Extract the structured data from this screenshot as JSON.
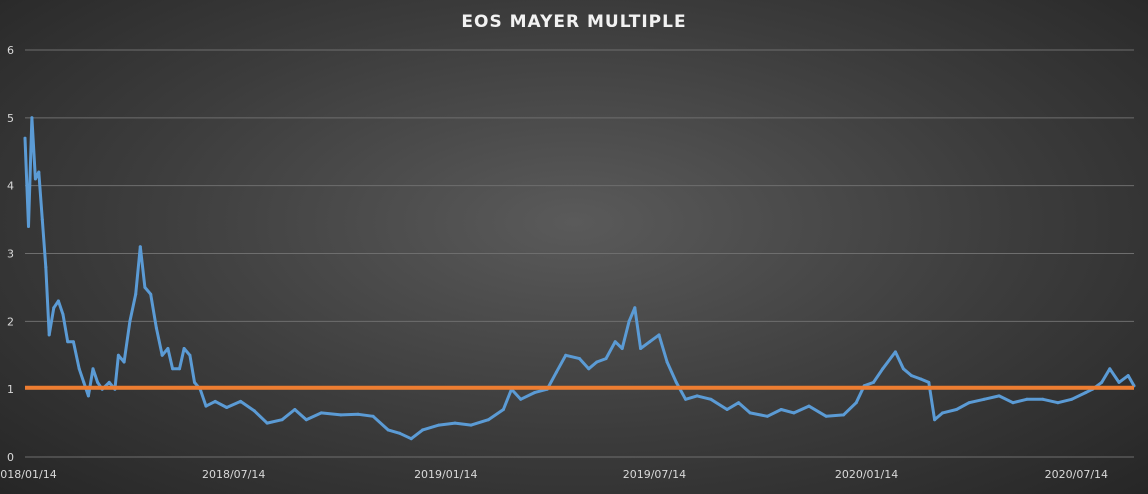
{
  "chart_data": {
    "type": "line",
    "title": "EOS MAYER MULTIPLE",
    "xlabel": "",
    "ylabel": "",
    "ylim": [
      0,
      6
    ],
    "yticks": [
      "0",
      "1",
      "2",
      "3",
      "4",
      "5",
      "6"
    ],
    "xticks": [
      "2018/01/14",
      "2018/07/14",
      "2019/01/14",
      "2019/07/14",
      "2020/01/14",
      "2020/07/14"
    ],
    "xlim": [
      "2018/01/14",
      "2020/09/02"
    ],
    "grid": true,
    "legend": "none",
    "colors": {
      "series": "#5b9bd5",
      "reference": "#ed7d31",
      "grid": "#6e6e6e",
      "text": "#d9d9d9"
    },
    "reference_line": {
      "y": 1.02
    },
    "series": [
      {
        "points": [
          [
            "2018/01/14",
            4.7
          ],
          [
            "2018/01/17",
            3.4
          ],
          [
            "2018/01/20",
            5.0
          ],
          [
            "2018/01/23",
            4.1
          ],
          [
            "2018/01/26",
            4.2
          ],
          [
            "2018/01/29",
            3.5
          ],
          [
            "2018/02/01",
            2.8
          ],
          [
            "2018/02/04",
            1.8
          ],
          [
            "2018/02/08",
            2.2
          ],
          [
            "2018/02/12",
            2.3
          ],
          [
            "2018/02/16",
            2.1
          ],
          [
            "2018/02/20",
            1.7
          ],
          [
            "2018/02/25",
            1.7
          ],
          [
            "2018/03/02",
            1.3
          ],
          [
            "2018/03/06",
            1.1
          ],
          [
            "2018/03/10",
            0.9
          ],
          [
            "2018/03/14",
            1.3
          ],
          [
            "2018/03/18",
            1.1
          ],
          [
            "2018/03/22",
            1.0
          ],
          [
            "2018/03/28",
            1.1
          ],
          [
            "2018/04/02",
            1.0
          ],
          [
            "2018/04/05",
            1.5
          ],
          [
            "2018/04/10",
            1.4
          ],
          [
            "2018/04/15",
            2.0
          ],
          [
            "2018/04/20",
            2.4
          ],
          [
            "2018/04/24",
            3.1
          ],
          [
            "2018/04/28",
            2.5
          ],
          [
            "2018/05/03",
            2.4
          ],
          [
            "2018/05/08",
            1.9
          ],
          [
            "2018/05/13",
            1.5
          ],
          [
            "2018/05/18",
            1.6
          ],
          [
            "2018/05/22",
            1.3
          ],
          [
            "2018/05/28",
            1.3
          ],
          [
            "2018/06/01",
            1.6
          ],
          [
            "2018/06/06",
            1.5
          ],
          [
            "2018/06/10",
            1.1
          ],
          [
            "2018/06/15",
            1.0
          ],
          [
            "2018/06/20",
            0.75
          ],
          [
            "2018/06/28",
            0.82
          ],
          [
            "2018/07/08",
            0.73
          ],
          [
            "2018/07/20",
            0.82
          ],
          [
            "2018/08/01",
            0.68
          ],
          [
            "2018/08/12",
            0.5
          ],
          [
            "2018/08/25",
            0.55
          ],
          [
            "2018/09/05",
            0.7
          ],
          [
            "2018/09/15",
            0.55
          ],
          [
            "2018/09/28",
            0.65
          ],
          [
            "2018/10/15",
            0.62
          ],
          [
            "2018/10/30",
            0.63
          ],
          [
            "2018/11/12",
            0.6
          ],
          [
            "2018/11/25",
            0.4
          ],
          [
            "2018/12/05",
            0.35
          ],
          [
            "2018/12/15",
            0.27
          ],
          [
            "2018/12/25",
            0.4
          ],
          [
            "2019/01/08",
            0.47
          ],
          [
            "2019/01/22",
            0.5
          ],
          [
            "2019/02/05",
            0.47
          ],
          [
            "2019/02/20",
            0.55
          ],
          [
            "2019/03/05",
            0.7
          ],
          [
            "2019/03/12",
            1.0
          ],
          [
            "2019/03/20",
            0.85
          ],
          [
            "2019/04/01",
            0.95
          ],
          [
            "2019/04/12",
            1.0
          ],
          [
            "2019/04/20",
            1.25
          ],
          [
            "2019/04/28",
            1.5
          ],
          [
            "2019/05/10",
            1.45
          ],
          [
            "2019/05/18",
            1.3
          ],
          [
            "2019/05/25",
            1.4
          ],
          [
            "2019/06/02",
            1.45
          ],
          [
            "2019/06/10",
            1.7
          ],
          [
            "2019/06/16",
            1.6
          ],
          [
            "2019/06/22",
            2.0
          ],
          [
            "2019/06/27",
            2.2
          ],
          [
            "2019/07/02",
            1.6
          ],
          [
            "2019/07/10",
            1.7
          ],
          [
            "2019/07/18",
            1.8
          ],
          [
            "2019/07/25",
            1.4
          ],
          [
            "2019/08/02",
            1.1
          ],
          [
            "2019/08/10",
            0.85
          ],
          [
            "2019/08/20",
            0.9
          ],
          [
            "2019/09/01",
            0.85
          ],
          [
            "2019/09/15",
            0.7
          ],
          [
            "2019/09/25",
            0.8
          ],
          [
            "2019/10/05",
            0.65
          ],
          [
            "2019/10/20",
            0.6
          ],
          [
            "2019/11/01",
            0.7
          ],
          [
            "2019/11/12",
            0.65
          ],
          [
            "2019/11/25",
            0.75
          ],
          [
            "2019/12/10",
            0.6
          ],
          [
            "2019/12/25",
            0.62
          ],
          [
            "2020/01/05",
            0.8
          ],
          [
            "2020/01/12",
            1.05
          ],
          [
            "2020/01/20",
            1.1
          ],
          [
            "2020/01/28",
            1.3
          ],
          [
            "2020/02/08",
            1.55
          ],
          [
            "2020/02/15",
            1.3
          ],
          [
            "2020/02/22",
            1.2
          ],
          [
            "2020/03/01",
            1.15
          ],
          [
            "2020/03/08",
            1.1
          ],
          [
            "2020/03/13",
            0.55
          ],
          [
            "2020/03/20",
            0.65
          ],
          [
            "2020/04/01",
            0.7
          ],
          [
            "2020/04/12",
            0.8
          ],
          [
            "2020/04/25",
            0.85
          ],
          [
            "2020/05/08",
            0.9
          ],
          [
            "2020/05/20",
            0.8
          ],
          [
            "2020/06/01",
            0.85
          ],
          [
            "2020/06/15",
            0.85
          ],
          [
            "2020/06/28",
            0.8
          ],
          [
            "2020/07/10",
            0.85
          ],
          [
            "2020/07/22",
            0.95
          ],
          [
            "2020/07/28",
            1.0
          ],
          [
            "2020/08/05",
            1.1
          ],
          [
            "2020/08/12",
            1.3
          ],
          [
            "2020/08/20",
            1.1
          ],
          [
            "2020/08/28",
            1.2
          ],
          [
            "2020/09/02",
            1.05
          ]
        ]
      }
    ]
  }
}
